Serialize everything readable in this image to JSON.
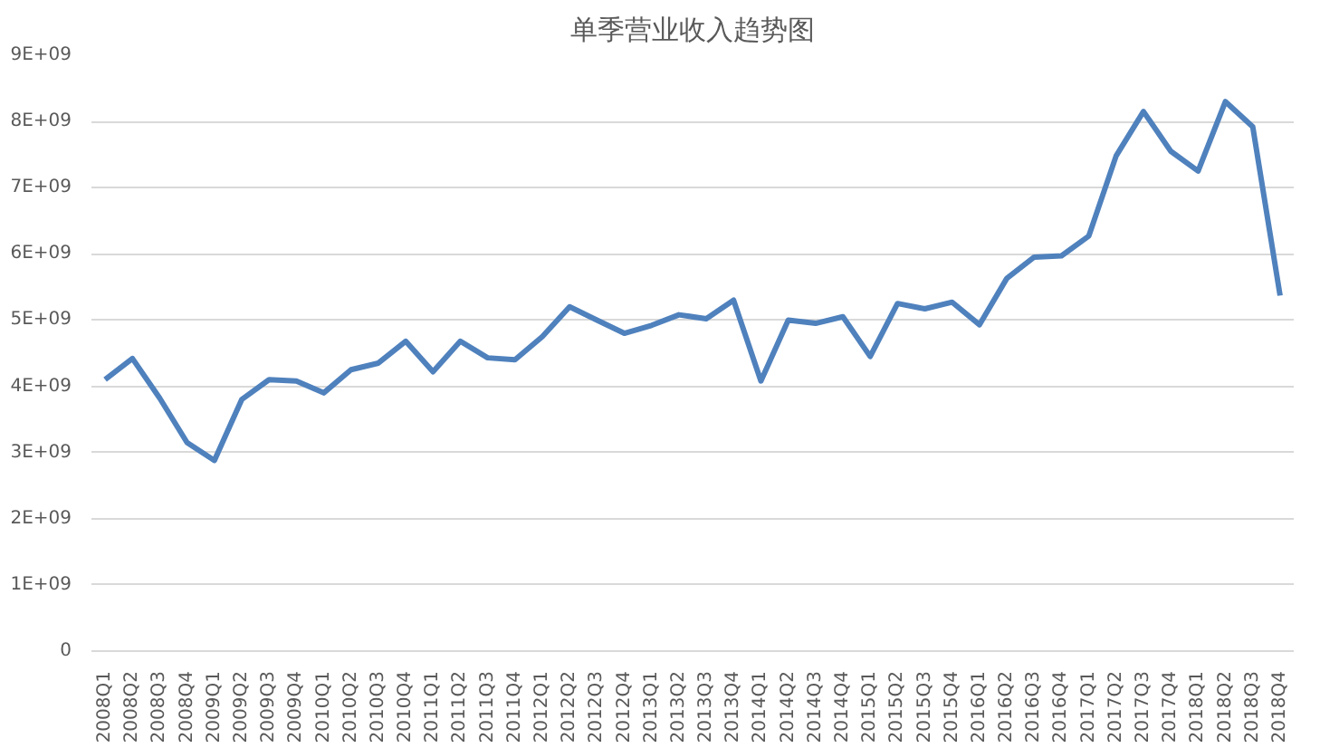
{
  "chart_data": {
    "type": "line",
    "title": "单季营业收入趋势图",
    "categories": [
      "2008Q1",
      "2008Q2",
      "2008Q3",
      "2008Q4",
      "2009Q1",
      "2009Q2",
      "2009Q3",
      "2009Q4",
      "2010Q1",
      "2010Q2",
      "2010Q3",
      "2010Q4",
      "2011Q1",
      "2011Q2",
      "2011Q3",
      "2011Q4",
      "2012Q1",
      "2012Q2",
      "2012Q3",
      "2012Q4",
      "2013Q1",
      "2013Q2",
      "2013Q3",
      "2013Q4",
      "2014Q1",
      "2014Q2",
      "2014Q3",
      "2014Q4",
      "2015Q1",
      "2015Q2",
      "2015Q3",
      "2015Q4",
      "2016Q1",
      "2016Q2",
      "2016Q3",
      "2016Q4",
      "2017Q1",
      "2017Q2",
      "2017Q3",
      "2017Q4",
      "2018Q1",
      "2018Q2",
      "2018Q3",
      "2018Q4"
    ],
    "series": [
      {
        "color": "#4f81bd",
        "values": [
          4100000000,
          4420000000,
          3820000000,
          3150000000,
          2880000000,
          3800000000,
          4100000000,
          4080000000,
          3900000000,
          4250000000,
          4350000000,
          4680000000,
          4220000000,
          4680000000,
          4430000000,
          4400000000,
          4750000000,
          5200000000,
          5000000000,
          4800000000,
          4920000000,
          5080000000,
          5020000000,
          5300000000,
          4080000000,
          5000000000,
          4950000000,
          5050000000,
          4450000000,
          5250000000,
          5170000000,
          5270000000,
          4930000000,
          5630000000,
          5950000000,
          5970000000,
          6270000000,
          7480000000,
          8150000000,
          7550000000,
          7250000000,
          8300000000,
          7920000000,
          5370000000
        ]
      }
    ],
    "ylim": [
      0,
      9000000000
    ],
    "yticks": [
      0,
      {
        "value": 1000000000,
        "label": "1E+09"
      },
      {
        "value": 2000000000,
        "label": "2E+09"
      },
      {
        "value": 3000000000,
        "label": "3E+09"
      },
      {
        "value": 4000000000,
        "label": "4E+09"
      },
      {
        "value": 5000000000,
        "label": "5E+09"
      },
      {
        "value": 6000000000,
        "label": "6E+09"
      },
      {
        "value": 7000000000,
        "label": "7E+09"
      },
      {
        "value": 8000000000,
        "label": "8E+09"
      },
      {
        "value": 9000000000,
        "label": "9E+09"
      }
    ],
    "grid": "y",
    "marker": "none",
    "line_style": "solid"
  }
}
